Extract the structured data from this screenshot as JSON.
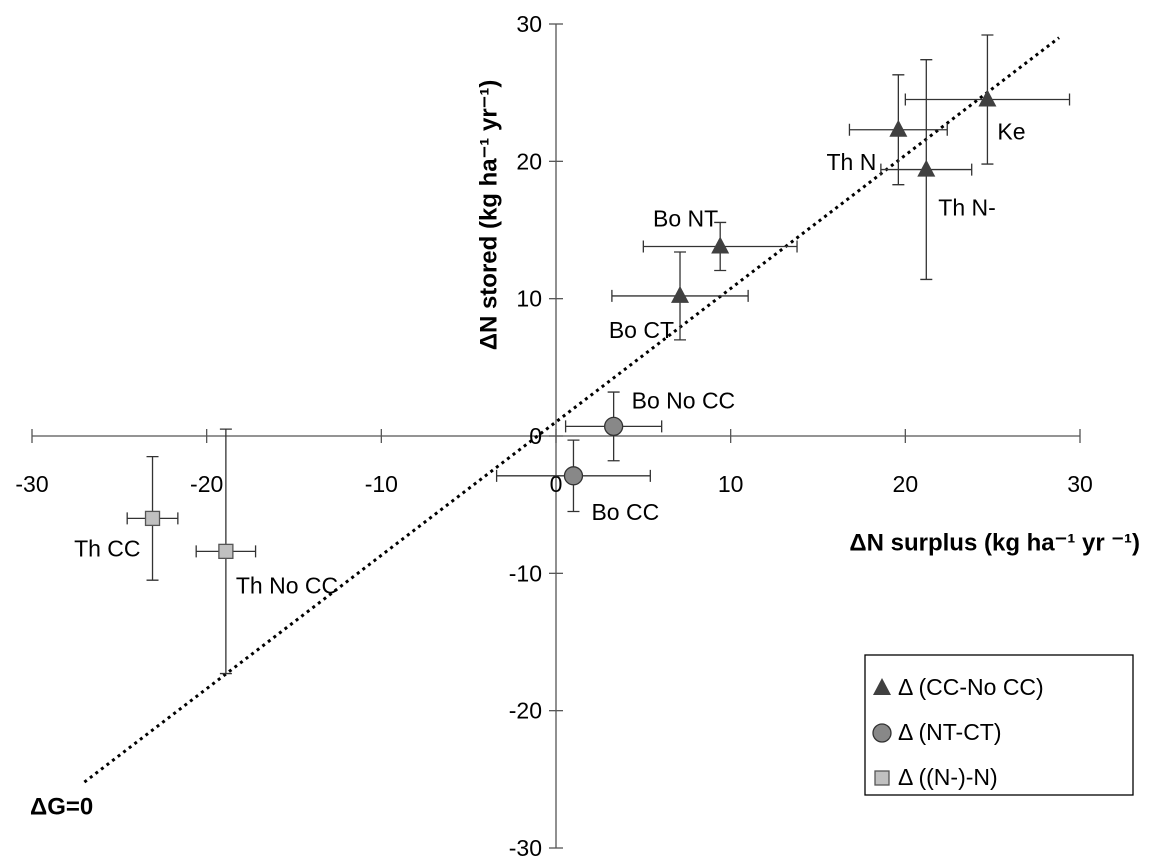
{
  "chart_data": {
    "type": "scatter",
    "x_label": "ΔN surplus (kg ha⁻¹ yr ⁻¹)",
    "y_label": "ΔN stored  (kg ha⁻¹ yr⁻¹)",
    "xlim": [
      -30,
      30
    ],
    "xticks": [
      -30,
      -20,
      -10,
      0,
      10,
      20,
      30
    ],
    "ylim": [
      -30,
      30
    ],
    "yticks": [
      -30,
      -20,
      -10,
      0,
      10,
      20,
      30
    ],
    "legend": "lower right",
    "reference_line": {
      "label": "ΔG=0",
      "x": [
        -27,
        28.8
      ],
      "y": [
        -25.2,
        29
      ]
    },
    "series": [
      {
        "name": "Δ (CC-No CC)",
        "marker": "triangle",
        "color": "#404040",
        "labels": [
          "Ke",
          "Th N",
          "Th N-",
          "Bo NT",
          "Bo CT"
        ],
        "x": [
          24.7,
          19.6,
          21.2,
          9.4,
          7.1
        ],
        "y": [
          24.5,
          22.3,
          19.4,
          13.8,
          10.2
        ],
        "xerr": [
          4.7,
          2.8,
          2.6,
          4.4,
          3.9
        ],
        "yerr": [
          4.7,
          4.0,
          8.0,
          1.75,
          3.2
        ]
      },
      {
        "name": "Δ (NT-CT)",
        "marker": "circle",
        "color": "#888888",
        "labels": [
          "Bo No CC",
          "Bo CC"
        ],
        "x": [
          3.3,
          1.0
        ],
        "y": [
          0.7,
          -2.9
        ],
        "xerr": [
          2.75,
          4.4
        ],
        "yerr": [
          2.5,
          2.6
        ]
      },
      {
        "name": "Δ ((N-)-N)",
        "marker": "square",
        "color": "#c0c0c0",
        "labels": [
          "Th CC",
          "Th No CC"
        ],
        "x": [
          -23.1,
          -18.9
        ],
        "y": [
          -6.0,
          -8.4
        ],
        "xerr": [
          1.45,
          1.7
        ],
        "yerr": [
          4.5,
          8.9
        ]
      }
    ]
  }
}
